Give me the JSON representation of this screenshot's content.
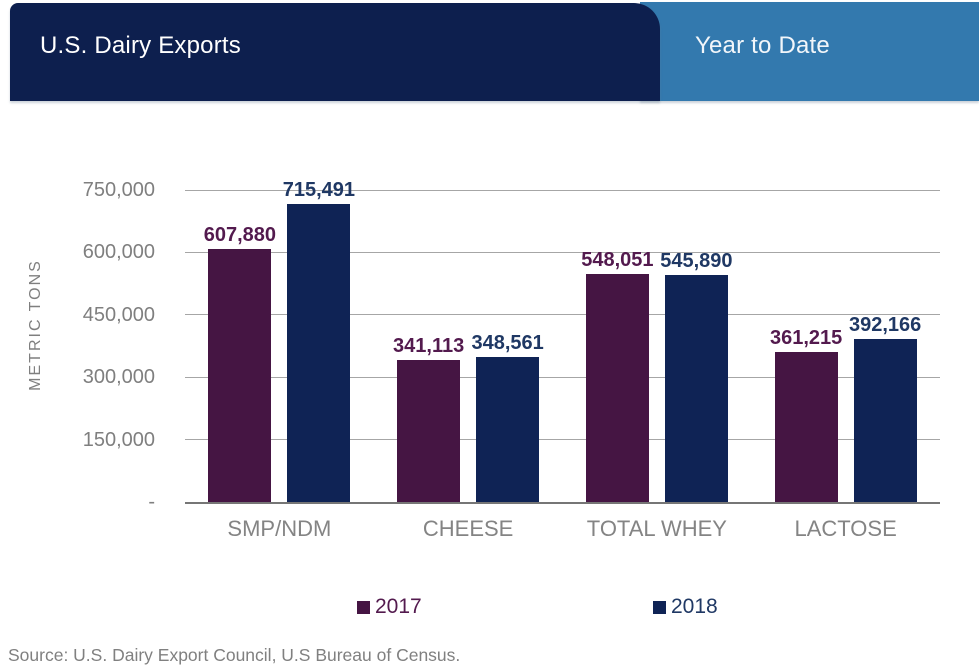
{
  "header": {
    "title": "U.S. Dairy Exports",
    "tab": "Year to Date",
    "navy_color": "#0d1f4e",
    "blue_color": "#3379ae"
  },
  "source_note": "Source: U.S. Dairy Export Council, U.S Bureau of Census.",
  "chart_data": {
    "type": "bar",
    "title": "U.S. Dairy Exports – Year to Date",
    "xlabel": "",
    "ylabel": "METRIC TONS",
    "ylim": [
      0,
      750000
    ],
    "grid": true,
    "legend_position": "bottom",
    "categories": [
      "SMP/NDM",
      "CHEESE",
      "TOTAL WHEY",
      "LACTOSE"
    ],
    "y_ticks": [
      {
        "value": 0,
        "label": "-"
      },
      {
        "value": 150000,
        "label": "150,000"
      },
      {
        "value": 300000,
        "label": "300,000"
      },
      {
        "value": 450000,
        "label": "450,000"
      },
      {
        "value": 600000,
        "label": "600,000"
      },
      {
        "value": 750000,
        "label": "750,000"
      }
    ],
    "series": [
      {
        "name": "2017",
        "color": "#451543",
        "label_color": "#531a4e",
        "values": [
          607880,
          341113,
          548051,
          361215
        ],
        "value_labels": [
          "607,880",
          "341,113",
          "548,051",
          "361,215"
        ]
      },
      {
        "name": "2018",
        "color": "#0f2355",
        "label_color": "#1f3864",
        "values": [
          715491,
          348561,
          545890,
          392166
        ],
        "value_labels": [
          "715,491",
          "348,561",
          "545,890",
          "392,166"
        ]
      }
    ]
  }
}
